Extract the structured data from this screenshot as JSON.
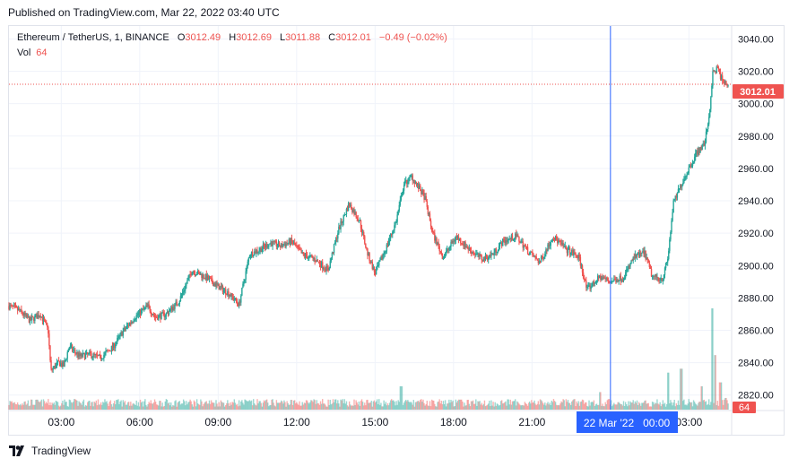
{
  "header": {
    "published": "Published on TradingView.com, Mar 22, 2022 03:40 UTC"
  },
  "legend": {
    "symbol": "Ethereum / TetherUS, 1, BINANCE",
    "open_label": "O",
    "open": "3012.49",
    "high_label": "H",
    "high": "3012.69",
    "low_label": "L",
    "low": "3011.88",
    "close_label": "C",
    "close": "3012.01",
    "change": "−0.49 (−0.02%)",
    "vol_label": "Vol",
    "vol": "64"
  },
  "price_badge": "3012.01",
  "vol_badge": "64",
  "crosshair_label": "22 Mar '22   00:00",
  "footer": {
    "brand": "TradingView"
  },
  "colors": {
    "up": "#26a69a",
    "down": "#ef5350",
    "crosshair": "#2962ff",
    "price_line": "#ef5350"
  },
  "chart_data": {
    "type": "candlestick",
    "y_ticks": [
      "3040.00",
      "3020.00",
      "3000.00",
      "2980.00",
      "2960.00",
      "2940.00",
      "2920.00",
      "2900.00",
      "2880.00",
      "2860.00",
      "2840.00",
      "2820.00"
    ],
    "y_tick_values": [
      3040,
      3020,
      3000,
      2980,
      2960,
      2940,
      2920,
      2900,
      2880,
      2860,
      2840,
      2820
    ],
    "ylim": [
      2811,
      3048
    ],
    "x_ticks": [
      "03:00",
      "06:00",
      "09:00",
      "12:00",
      "15:00",
      "18:00",
      "21:00",
      "03:00"
    ],
    "x_tick_hours": [
      3,
      6,
      9,
      12,
      15,
      18,
      21,
      27
    ],
    "xlim_hours": [
      1.0,
      28.6
    ],
    "crosshair_hour": 24,
    "last_price": 3012.01,
    "anchors": [
      [
        1.0,
        2875
      ],
      [
        1.4,
        2872
      ],
      [
        1.8,
        2866
      ],
      [
        2.2,
        2870
      ],
      [
        2.5,
        2860
      ],
      [
        2.6,
        2835
      ],
      [
        2.9,
        2840
      ],
      [
        3.1,
        2838
      ],
      [
        3.3,
        2850
      ],
      [
        3.7,
        2844
      ],
      [
        4.1,
        2845
      ],
      [
        4.5,
        2843
      ],
      [
        5.0,
        2850
      ],
      [
        5.3,
        2858
      ],
      [
        5.8,
        2868
      ],
      [
        6.3,
        2875
      ],
      [
        6.6,
        2868
      ],
      [
        7.0,
        2870
      ],
      [
        7.5,
        2878
      ],
      [
        8.0,
        2897
      ],
      [
        8.5,
        2893
      ],
      [
        9.0,
        2887
      ],
      [
        9.4,
        2883
      ],
      [
        9.8,
        2876
      ],
      [
        10.2,
        2907
      ],
      [
        10.6,
        2910
      ],
      [
        11.0,
        2914
      ],
      [
        11.4,
        2912
      ],
      [
        11.8,
        2915
      ],
      [
        12.2,
        2907
      ],
      [
        12.7,
        2904
      ],
      [
        13.2,
        2897
      ],
      [
        13.6,
        2922
      ],
      [
        14.0,
        2938
      ],
      [
        14.4,
        2928
      ],
      [
        14.7,
        2908
      ],
      [
        15.0,
        2895
      ],
      [
        15.4,
        2910
      ],
      [
        15.8,
        2927
      ],
      [
        16.1,
        2950
      ],
      [
        16.4,
        2955
      ],
      [
        16.9,
        2942
      ],
      [
        17.2,
        2920
      ],
      [
        17.6,
        2905
      ],
      [
        18.1,
        2918
      ],
      [
        18.6,
        2910
      ],
      [
        19.1,
        2904
      ],
      [
        19.5,
        2907
      ],
      [
        19.9,
        2915
      ],
      [
        20.4,
        2918
      ],
      [
        20.9,
        2908
      ],
      [
        21.3,
        2902
      ],
      [
        21.8,
        2918
      ],
      [
        22.3,
        2910
      ],
      [
        22.8,
        2905
      ],
      [
        23.1,
        2885
      ],
      [
        23.6,
        2893
      ],
      [
        24.0,
        2890
      ],
      [
        24.5,
        2893
      ],
      [
        24.9,
        2905
      ],
      [
        25.3,
        2908
      ],
      [
        25.6,
        2893
      ],
      [
        26.0,
        2892
      ],
      [
        26.2,
        2905
      ],
      [
        26.4,
        2938
      ],
      [
        26.7,
        2950
      ],
      [
        27.0,
        2960
      ],
      [
        27.3,
        2970
      ],
      [
        27.6,
        2975
      ],
      [
        27.8,
        2996
      ],
      [
        27.9,
        3018
      ],
      [
        28.1,
        3022
      ],
      [
        28.3,
        3013
      ],
      [
        28.5,
        3012
      ]
    ],
    "volume_max": 520,
    "volume_spikes": [
      [
        16.0,
        120
      ],
      [
        23.6,
        90
      ],
      [
        26.2,
        190
      ],
      [
        26.7,
        210
      ],
      [
        27.5,
        120
      ],
      [
        27.9,
        520
      ],
      [
        28.0,
        280
      ],
      [
        28.2,
        140
      ],
      [
        28.4,
        60
      ]
    ]
  }
}
